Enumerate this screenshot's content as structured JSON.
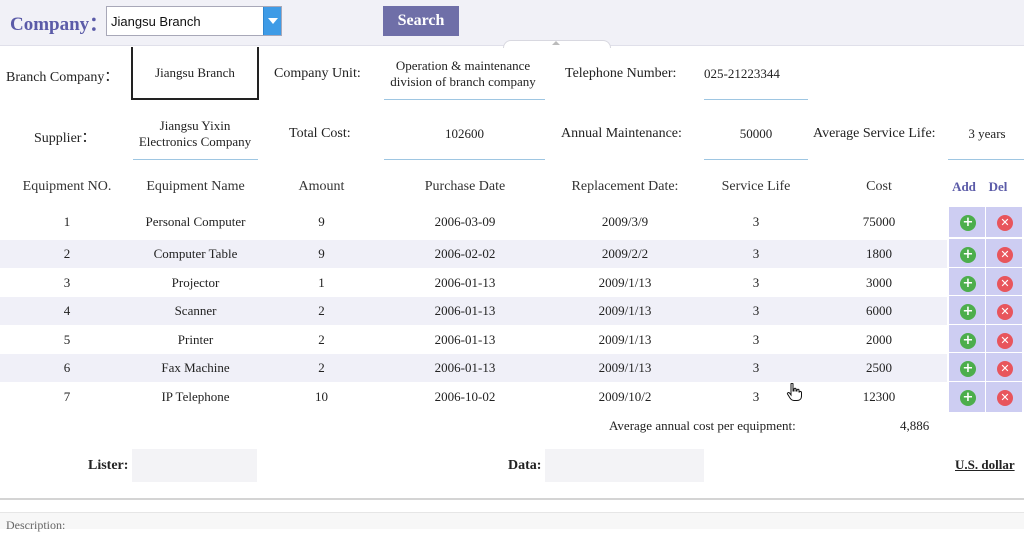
{
  "header": {
    "company_label": "Company：",
    "company_value": "Jiangsu Branch",
    "search_label": "Search"
  },
  "info": {
    "branch_company_label": "Branch Company：",
    "branch_company_value": "Jiangsu Branch",
    "company_unit_label": "Company Unit:",
    "company_unit_line1": "Operation & maintenance",
    "company_unit_line2": "division of branch company",
    "telephone_label": "Telephone Number:",
    "telephone_value": "025-21223344",
    "supplier_label": "Supplier：",
    "supplier_line1": "Jiangsu Yixin",
    "supplier_line2": "Electronics Company",
    "total_cost_label": "Total Cost:",
    "total_cost_value": "102600",
    "annual_maintenance_label": "Annual Maintenance:",
    "annual_maintenance_value": "50000",
    "avg_service_life_label": "Average Service Life:",
    "avg_service_life_value": "3 years"
  },
  "table": {
    "headers": {
      "no": "Equipment NO.",
      "name": "Equipment Name",
      "amount": "Amount",
      "purchase": "Purchase Date",
      "replacement": "Replacement Date:",
      "life": "Service Life",
      "cost": "Cost",
      "add": "Add",
      "del": "Del"
    },
    "rows": [
      {
        "no": "1",
        "name": "Personal Computer",
        "amount": "9",
        "purchase": "2006-03-09",
        "replacement": "2009/3/9",
        "life": "3",
        "cost": "75000"
      },
      {
        "no": "2",
        "name": "Computer Table",
        "amount": "9",
        "purchase": "2006-02-02",
        "replacement": "2009/2/2",
        "life": "3",
        "cost": "1800"
      },
      {
        "no": "3",
        "name": "Projector",
        "amount": "1",
        "purchase": "2006-01-13",
        "replacement": "2009/1/13",
        "life": "3",
        "cost": "3000"
      },
      {
        "no": "4",
        "name": "Scanner",
        "amount": "2",
        "purchase": "2006-01-13",
        "replacement": "2009/1/13",
        "life": "3",
        "cost": "6000"
      },
      {
        "no": "5",
        "name": "Printer",
        "amount": "2",
        "purchase": "2006-01-13",
        "replacement": "2009/1/13",
        "life": "3",
        "cost": "2000"
      },
      {
        "no": "6",
        "name": "Fax Machine",
        "amount": "2",
        "purchase": "2006-01-13",
        "replacement": "2009/1/13",
        "life": "3",
        "cost": "2500"
      },
      {
        "no": "7",
        "name": "IP Telephone",
        "amount": "10",
        "purchase": "2006-10-02",
        "replacement": "2009/10/2",
        "life": "3",
        "cost": "12300"
      }
    ],
    "avg_label": "Average annual cost per equipment:",
    "avg_value": "4,886"
  },
  "footer": {
    "lister_label": "Lister:",
    "data_label": "Data:",
    "currency": "U.S. dollar",
    "description_label": "Description:"
  },
  "colors": {
    "accent": "#5b5ba8",
    "action_cell": "#cdcdf2",
    "add_icon": "#4cae4c",
    "del_icon": "#e8555c",
    "select_arrow": "#3e9be6"
  },
  "icons": {
    "add": "plus-circle-icon",
    "del": "x-circle-icon",
    "dropdown": "chevron-down-icon",
    "cursor": "hand-pointer-icon"
  }
}
